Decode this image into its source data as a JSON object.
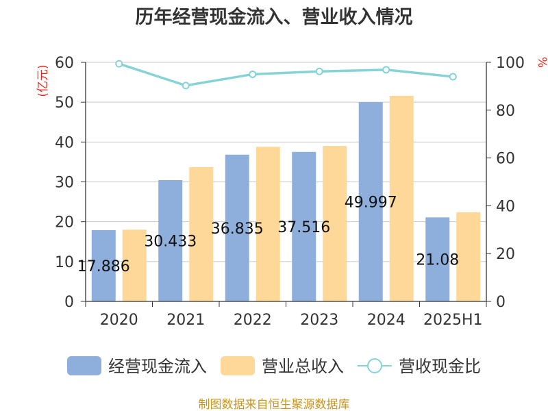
{
  "chart_data": {
    "type": "bar",
    "title": "历年经营现金流入、营业收入情况",
    "categories": [
      "2020",
      "2021",
      "2022",
      "2023",
      "2024",
      "2025H1"
    ],
    "series": [
      {
        "name": "经营现金流入",
        "type": "bar",
        "axis": "left",
        "color": "#8eaedb",
        "values": [
          17.886,
          30.433,
          36.835,
          37.516,
          49.997,
          21.08
        ],
        "labels": [
          "17.886",
          "30.433",
          "36.835",
          "37.516",
          "49.997",
          "21.08"
        ]
      },
      {
        "name": "营业总收入",
        "type": "bar",
        "axis": "left",
        "color": "#fdd899",
        "values": [
          18.0,
          33.7,
          38.8,
          39.0,
          51.6,
          22.4
        ]
      },
      {
        "name": "营收现金比",
        "type": "line",
        "axis": "right",
        "color": "#86d3d6",
        "values": [
          99.4,
          90.3,
          95.0,
          96.2,
          96.9,
          94.0
        ]
      }
    ],
    "left_axis": {
      "unit": "(亿元)",
      "ylim": [
        0,
        60
      ],
      "ticks": [
        "0",
        "10",
        "20",
        "30",
        "40",
        "50",
        "60"
      ]
    },
    "right_axis": {
      "unit": "%",
      "ylim": [
        0,
        100
      ],
      "ticks": [
        "0",
        "20",
        "40",
        "60",
        "80",
        "100"
      ]
    },
    "grid": true,
    "legend_position": "bottom",
    "source": "制图数据来自恒生聚源数据库"
  }
}
